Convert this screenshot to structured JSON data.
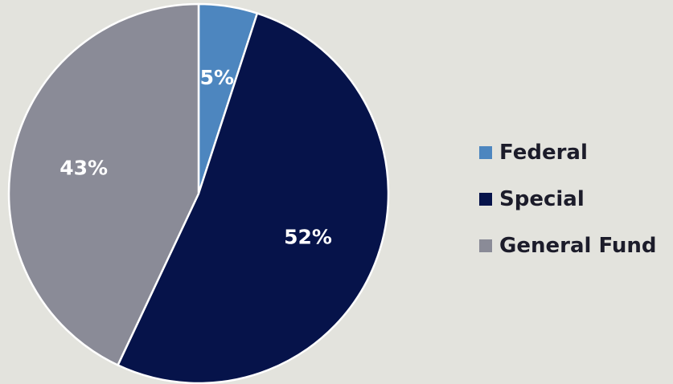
{
  "chart_data": {
    "type": "pie",
    "slices": [
      {
        "name": "Federal",
        "value": 5,
        "label": "5%",
        "color": "#4d86bf"
      },
      {
        "name": "Special",
        "value": 52,
        "label": "52%",
        "color": "#06134a"
      },
      {
        "name": "General Fund",
        "value": 43,
        "label": "43%",
        "color": "#8a8b97"
      }
    ],
    "start_angle_deg": 0,
    "direction": "clockwise",
    "slice_border_color": "#ffffff",
    "legend_position": "right",
    "background_color": "#e3e3dd"
  },
  "legend": {
    "items": [
      {
        "label": "Federal",
        "color": "#4d86bf"
      },
      {
        "label": "Special",
        "color": "#06134a"
      },
      {
        "label": "General Fund",
        "color": "#8a8b97"
      }
    ]
  }
}
